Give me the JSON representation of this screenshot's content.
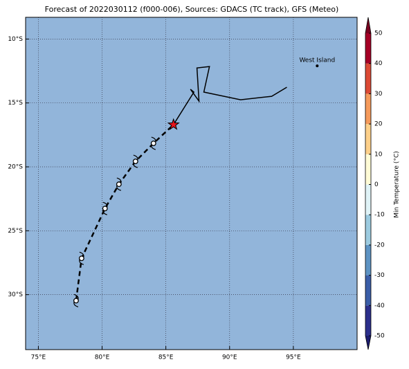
{
  "chart_data": {
    "type": "track-map",
    "title": "Forecast of 2022030112 (f000-006), Sources: GDACS (TC track), GFS (Meteo)",
    "background": "#92b5da",
    "grid": true,
    "xlim": [
      74,
      100
    ],
    "ylim": [
      -34.3,
      -8.3
    ],
    "xticks": [
      {
        "value": 75,
        "label": "75°E"
      },
      {
        "value": 80,
        "label": "80°E"
      },
      {
        "value": 85,
        "label": "85°E"
      },
      {
        "value": 90,
        "label": "90°E"
      },
      {
        "value": 95,
        "label": "95°E"
      }
    ],
    "yticks": [
      {
        "value": -10,
        "label": "10°S"
      },
      {
        "value": -15,
        "label": "15°S"
      },
      {
        "value": -20,
        "label": "20°S"
      },
      {
        "value": -25,
        "label": "25°S"
      },
      {
        "value": -30,
        "label": "30°S"
      }
    ],
    "track": {
      "x": [
        77.96,
        78.39,
        80.23,
        81.32,
        82.62,
        84.03,
        85.6
      ],
      "y": [
        -30.47,
        -27.16,
        -23.26,
        -21.36,
        -19.57,
        -18.16,
        -16.7
      ]
    },
    "current": {
      "x": 85.6,
      "y": -16.7,
      "color": "#e8141c"
    },
    "forecast": {
      "x": [
        85.6,
        87.2,
        86.93,
        87.6,
        87.44,
        88.42,
        87.98,
        90.86,
        93.3,
        94.49
      ],
      "y": [
        -16.7,
        -14.15,
        -13.93,
        -14.86,
        -12.26,
        -12.15,
        -14.15,
        -14.75,
        -14.48,
        -13.77
      ]
    },
    "places": [
      {
        "label": "West Island",
        "x": 96.87,
        "y": -12.1
      }
    ],
    "colorbar": {
      "label": "Min Temperature (°C)",
      "lim": [
        -50,
        50
      ],
      "ticks": [
        -50,
        -40,
        -30,
        -20,
        -10,
        0,
        10,
        20,
        30,
        40,
        50
      ],
      "colors": [
        "#2c2f8b",
        "#3b5ea8",
        "#5d93c3",
        "#9ccbe0",
        "#e0f3f7",
        "#fffbd6",
        "#fdd08a",
        "#f59a5b",
        "#dc4a35",
        "#a50026"
      ],
      "under_color": "#1c1c6e",
      "over_color": "#7a0020"
    }
  }
}
